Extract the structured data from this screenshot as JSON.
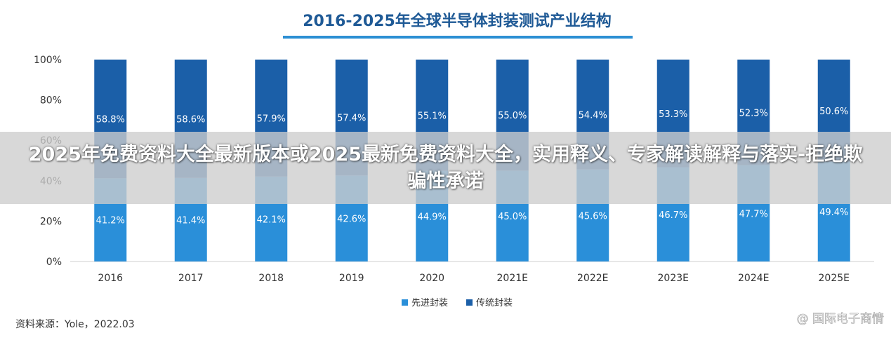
{
  "banner": {
    "headline": "2025年免费资料大全最新版本或2025最新免费资料大全，实用释义、专家解读解释与落实-拒绝欺骗性承诺"
  },
  "source_note": "资料来源：Yole，2022.03",
  "watermark": "@ 国际电子商情",
  "colors": {
    "advanced": "#2a8fd9",
    "traditional": "#1b5fa8",
    "title_underline": "#2c8fd3",
    "title_text": "#1f5a96"
  },
  "chart_data": {
    "type": "bar",
    "stacked": true,
    "title": "2016-2025年全球半导体封装测试产业结构",
    "categories": [
      "2016",
      "2017",
      "2018",
      "2019",
      "2020",
      "2021E",
      "2022E",
      "2023E",
      "2024E",
      "2025E"
    ],
    "series": [
      {
        "name": "先进封装",
        "values": [
          41.2,
          41.4,
          42.1,
          42.6,
          44.9,
          45.0,
          45.6,
          46.7,
          47.7,
          49.4
        ],
        "labels": [
          "41.2%",
          "41.4%",
          "42.1%",
          "42.6%",
          "44.9%",
          "45.0%",
          "45.6%",
          "46.7%",
          "47.7%",
          "49.4%"
        ]
      },
      {
        "name": "传统封装",
        "values": [
          58.8,
          58.6,
          57.9,
          57.4,
          55.1,
          55.0,
          54.4,
          53.3,
          52.3,
          50.6
        ],
        "labels": [
          "58.8%",
          "58.6%",
          "57.9%",
          "57.4%",
          "55.1%",
          "55.0%",
          "54.4%",
          "53.3%",
          "52.3%",
          "50.6%"
        ]
      }
    ],
    "yticks": [
      0,
      20,
      40,
      60,
      80,
      100
    ],
    "ytick_labels": [
      "0%",
      "20%",
      "40%",
      "60%",
      "80%",
      "100%"
    ],
    "ylim": [
      0,
      100
    ],
    "xlabel": "",
    "ylabel": "",
    "grid": false,
    "legend_position": "bottom-center"
  }
}
